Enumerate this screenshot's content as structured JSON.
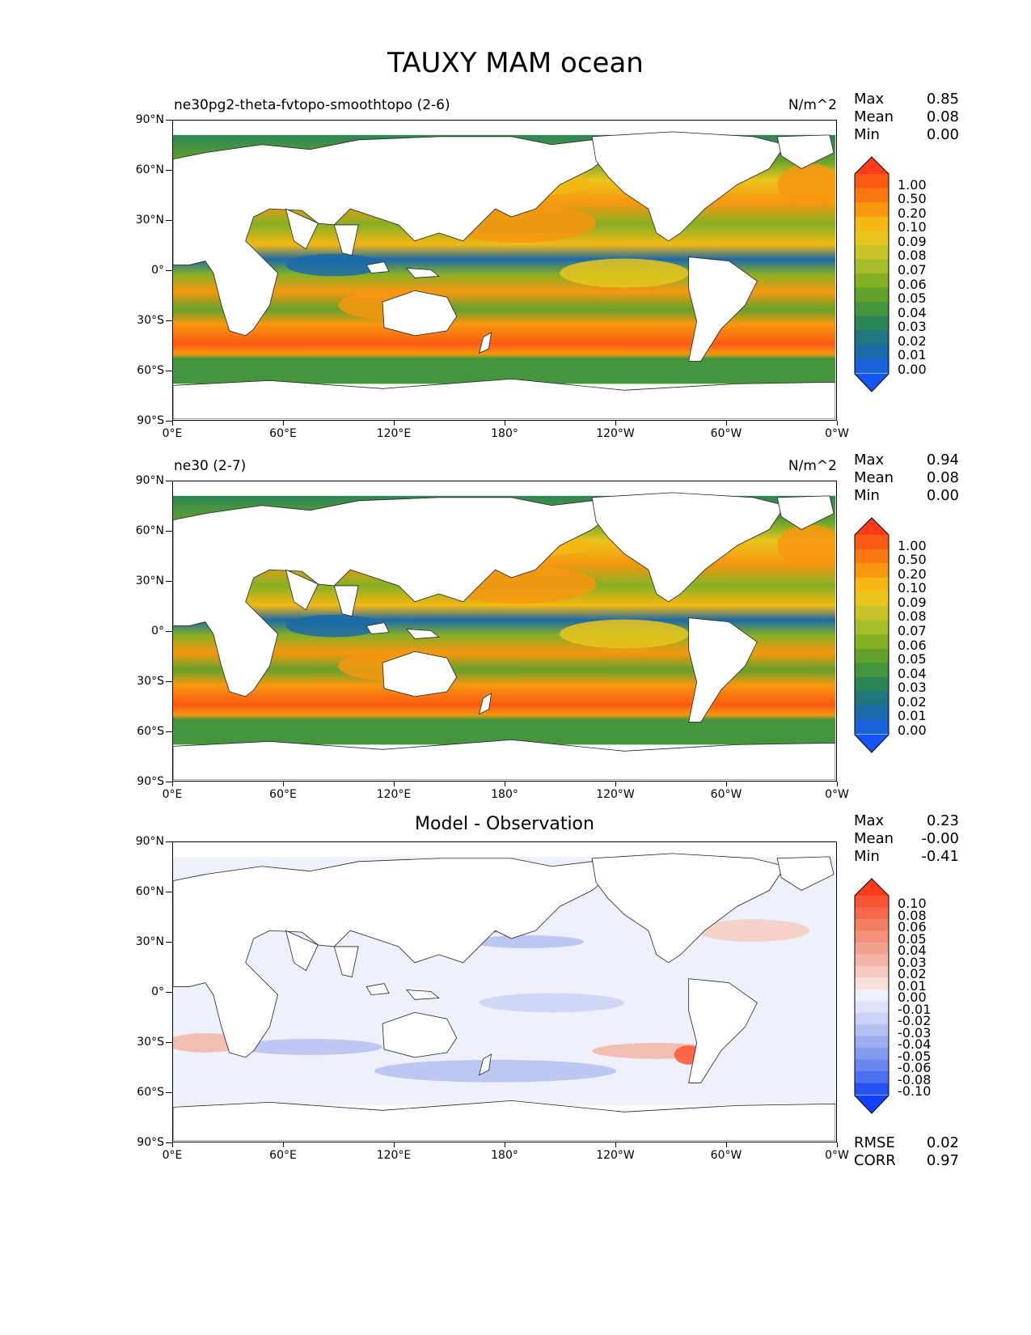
{
  "figure": {
    "title": "TAUXY MAM ocean"
  },
  "axes": {
    "lat_labels": [
      "90°N",
      "60°N",
      "30°N",
      "0°",
      "30°S",
      "60°S",
      "90°S"
    ],
    "lon_labels": [
      "0°E",
      "60°E",
      "120°E",
      "180°",
      "120°W",
      "60°W",
      "0°W"
    ]
  },
  "panels": [
    {
      "subtitle": "ne30pg2-theta-fvtopo-smoothtopo (2-6)",
      "units": "N/m^2",
      "stats": [
        {
          "label": "Max",
          "value": "0.85"
        },
        {
          "label": "Mean",
          "value": "0.08"
        },
        {
          "label": "Min",
          "value": "0.00"
        }
      ],
      "colorbar": {
        "labels": [
          "1.00",
          "0.50",
          "0.20",
          "0.10",
          "0.09",
          "0.08",
          "0.07",
          "0.06",
          "0.05",
          "0.04",
          "0.03",
          "0.02",
          "0.01",
          "0.00"
        ],
        "colors": [
          "#ff3a1a",
          "#fb5a12",
          "#f97910",
          "#f8970f",
          "#f6b812",
          "#e9c51d",
          "#c9c42a",
          "#a7bd2a",
          "#86b024",
          "#62a22b",
          "#44953d",
          "#2c8556",
          "#20757f",
          "#1b6aa8",
          "#1762d8",
          "#1555f5"
        ]
      }
    },
    {
      "subtitle": "ne30 (2-7)",
      "units": "N/m^2",
      "stats": [
        {
          "label": "Max",
          "value": "0.94"
        },
        {
          "label": "Mean",
          "value": "0.08"
        },
        {
          "label": "Min",
          "value": "0.00"
        }
      ],
      "colorbar": {
        "labels": [
          "1.00",
          "0.50",
          "0.20",
          "0.10",
          "0.09",
          "0.08",
          "0.07",
          "0.06",
          "0.05",
          "0.04",
          "0.03",
          "0.02",
          "0.01",
          "0.00"
        ],
        "colors": [
          "#ff3a1a",
          "#fb5a12",
          "#f97910",
          "#f8970f",
          "#f6b812",
          "#e9c51d",
          "#c9c42a",
          "#a7bd2a",
          "#86b024",
          "#62a22b",
          "#44953d",
          "#2c8556",
          "#20757f",
          "#1b6aa8",
          "#1762d8",
          "#1555f5"
        ]
      }
    },
    {
      "subtitle": "Model - Observation",
      "stats": [
        {
          "label": "Max",
          "value": "0.23"
        },
        {
          "label": "Mean",
          "value": "-0.00"
        },
        {
          "label": "Min",
          "value": "-0.41"
        }
      ],
      "extra_stats": [
        {
          "label": "RMSE",
          "value": "0.02"
        },
        {
          "label": "CORR",
          "value": "0.97"
        }
      ],
      "colorbar": {
        "labels": [
          "0.10",
          "0.08",
          "0.06",
          "0.05",
          "0.04",
          "0.03",
          "0.02",
          "0.01",
          "0.00",
          "-0.01",
          "-0.02",
          "-0.03",
          "-0.04",
          "-0.05",
          "-0.06",
          "-0.08",
          "-0.10"
        ],
        "colors": [
          "#ff3a1a",
          "#fa5533",
          "#f66a4b",
          "#f47e62",
          "#f29178",
          "#f2a38f",
          "#f3b6a6",
          "#f5cbc0",
          "#f8e0da",
          "#eef0fb",
          "#dfe3f8",
          "#cad2f5",
          "#b3c0f2",
          "#9caef0",
          "#839bee",
          "#6986ee",
          "#4d70f0",
          "#2452f5",
          "#1140ff"
        ]
      }
    }
  ]
}
